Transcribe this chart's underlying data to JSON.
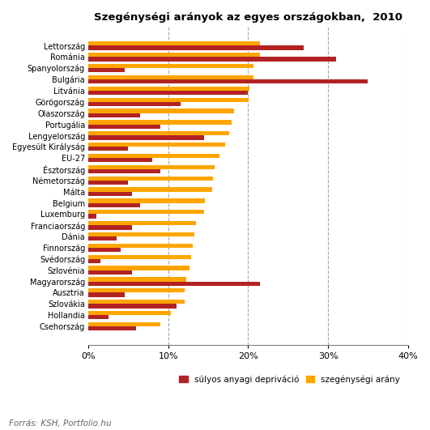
{
  "title": "Szegénységi arányok az egyes országokban,  2010",
  "countries": [
    "Lettország",
    "Románia",
    "Spanyolország",
    "Bulgária",
    "Litvánia",
    "Görögország",
    "Olaszország",
    "Portugália",
    "Lengyelország",
    "Egyesült Királyság",
    "EU-27",
    "Észtország",
    "Németország",
    "Málta",
    "Belgium",
    "Luxemburg",
    "Franciaország",
    "Dánia",
    "Finnország",
    "Svédország",
    "Szlovénia",
    "Magyarország",
    "Ausztria",
    "Szlovákia",
    "Hollandia",
    "Csehország"
  ],
  "sullyos_deprivacio": [
    27.0,
    31.0,
    4.5,
    35.0,
    20.0,
    11.5,
    6.5,
    9.0,
    14.5,
    5.0,
    8.0,
    9.0,
    5.0,
    5.5,
    6.5,
    1.0,
    5.5,
    3.5,
    4.0,
    1.5,
    5.5,
    21.5,
    4.5,
    11.0,
    2.5,
    6.0
  ],
  "szegenysegi_arany": [
    21.5,
    21.5,
    20.7,
    20.7,
    20.2,
    20.1,
    18.2,
    17.9,
    17.6,
    17.1,
    16.4,
    15.8,
    15.6,
    15.5,
    14.6,
    14.5,
    13.5,
    13.3,
    13.1,
    12.9,
    12.7,
    12.3,
    12.1,
    12.0,
    10.3,
    9.0
  ],
  "color_deprivacio": "#B22222",
  "color_szegenysegi": "#FFA500",
  "background_color": "#FFFFFF",
  "xlim": [
    0,
    40
  ],
  "xticks": [
    0,
    10,
    20,
    30,
    40
  ],
  "xticklabels": [
    "0%",
    "10%",
    "20%",
    "30%",
    "40%"
  ],
  "footer": "Forrás: KSH, Portfolio.hu",
  "legend_deprivacio": "súlyos anyagi deprivció",
  "legend_szegenysegi": "szegénységi arány"
}
